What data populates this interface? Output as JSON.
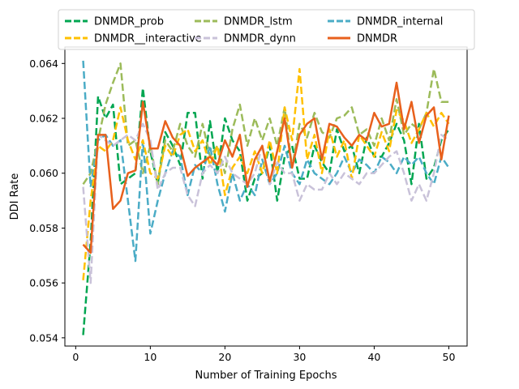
{
  "chart_data": {
    "type": "line",
    "title": "",
    "xlabel": "Number of Training Epochs",
    "ylabel": "DDI Rate",
    "xlim": [
      -1.45,
      52.45
    ],
    "ylim": [
      0.0537,
      0.0646
    ],
    "xticks": [
      0,
      10,
      20,
      30,
      40,
      50
    ],
    "yticks": [
      0.054,
      0.056,
      0.058,
      0.06,
      0.062,
      0.064
    ],
    "ytick_labels": [
      "0.054",
      "0.056",
      "0.058",
      "0.060",
      "0.062",
      "0.064"
    ],
    "grid": false,
    "legend_position": "top",
    "x": [
      1,
      2,
      3,
      4,
      5,
      6,
      7,
      8,
      9,
      10,
      11,
      12,
      13,
      14,
      15,
      16,
      17,
      18,
      19,
      20,
      21,
      22,
      23,
      24,
      25,
      26,
      27,
      28,
      29,
      30,
      31,
      32,
      33,
      34,
      35,
      36,
      37,
      38,
      39,
      40,
      41,
      42,
      43,
      44,
      45,
      46,
      47,
      48,
      49,
      50
    ],
    "series": [
      {
        "name": "DNMDR_prob",
        "color": "#00a651",
        "dash": "dashed",
        "width": 2.5,
        "values": [
          0.0541,
          0.0575,
          0.0628,
          0.062,
          0.0625,
          0.0596,
          0.0598,
          0.06,
          0.0631,
          0.0608,
          0.0596,
          0.0615,
          0.061,
          0.0603,
          0.0622,
          0.0622,
          0.0598,
          0.0619,
          0.06,
          0.062,
          0.0612,
          0.0608,
          0.059,
          0.0598,
          0.06,
          0.061,
          0.059,
          0.0606,
          0.061,
          0.0598,
          0.0598,
          0.061,
          0.0604,
          0.06,
          0.0616,
          0.0608,
          0.061,
          0.06,
          0.0613,
          0.0606,
          0.0606,
          0.0611,
          0.0618,
          0.0612,
          0.0596,
          0.0618,
          0.0598,
          0.0602,
          0.0612,
          0.0616
        ]
      },
      {
        "name": "DNMDR_lstm",
        "color": "#9cbb5a",
        "dash": "dashed",
        "width": 2.5,
        "values": [
          0.0596,
          0.06,
          0.0612,
          0.0625,
          0.0633,
          0.064,
          0.061,
          0.0612,
          0.06,
          0.061,
          0.0596,
          0.0612,
          0.0608,
          0.0618,
          0.061,
          0.0606,
          0.0618,
          0.0606,
          0.061,
          0.06,
          0.0616,
          0.0625,
          0.061,
          0.062,
          0.0612,
          0.062,
          0.061,
          0.0624,
          0.0602,
          0.0618,
          0.0613,
          0.0622,
          0.0615,
          0.0613,
          0.062,
          0.0621,
          0.0624,
          0.0614,
          0.0616,
          0.061,
          0.062,
          0.0612,
          0.0627,
          0.0614,
          0.0618,
          0.0616,
          0.0622,
          0.0638,
          0.0626,
          0.0626
        ]
      },
      {
        "name": "DNMDR_internal",
        "color": "#4bacc6",
        "dash": "dashed",
        "width": 2.5,
        "values": [
          0.0641,
          0.0595,
          0.0612,
          0.0614,
          0.061,
          0.0612,
          0.059,
          0.0568,
          0.0612,
          0.0578,
          0.059,
          0.06,
          0.0608,
          0.0606,
          0.0592,
          0.0603,
          0.06,
          0.061,
          0.0596,
          0.0586,
          0.06,
          0.059,
          0.0596,
          0.0592,
          0.0605,
          0.0596,
          0.06,
          0.061,
          0.06,
          0.0596,
          0.0605,
          0.06,
          0.0598,
          0.0596,
          0.06,
          0.0606,
          0.06,
          0.0605,
          0.0603,
          0.06,
          0.0606,
          0.0604,
          0.06,
          0.0606,
          0.0603,
          0.0606,
          0.06,
          0.0596,
          0.0606,
          0.0602
        ]
      },
      {
        "name": "DNMDR__interactive",
        "color": "#ffc000",
        "dash": "dashed",
        "width": 2.5,
        "values": [
          0.0561,
          0.059,
          0.061,
          0.0608,
          0.0612,
          0.0624,
          0.0612,
          0.0605,
          0.0612,
          0.06,
          0.0598,
          0.061,
          0.0606,
          0.0614,
          0.0616,
          0.0608,
          0.0612,
          0.0603,
          0.061,
          0.0592,
          0.0602,
          0.0606,
          0.06,
          0.0608,
          0.06,
          0.0612,
          0.06,
          0.0624,
          0.0612,
          0.0638,
          0.0605,
          0.0614,
          0.06,
          0.0616,
          0.0606,
          0.0612,
          0.0598,
          0.0614,
          0.061,
          0.0606,
          0.0615,
          0.0608,
          0.0623,
          0.0619,
          0.0611,
          0.0616,
          0.0622,
          0.0617,
          0.0622,
          0.0618
        ]
      },
      {
        "name": "DNMDR_dynn",
        "color": "#c9c2d9",
        "dash": "dashed",
        "width": 2.5,
        "values": [
          0.0595,
          0.056,
          0.0614,
          0.0612,
          0.061,
          0.0612,
          0.0614,
          0.0612,
          0.0618,
          0.0612,
          0.0594,
          0.06,
          0.0602,
          0.0602,
          0.0592,
          0.0588,
          0.06,
          0.0603,
          0.06,
          0.0606,
          0.06,
          0.0598,
          0.0596,
          0.06,
          0.061,
          0.0596,
          0.0604,
          0.06,
          0.06,
          0.059,
          0.0596,
          0.0594,
          0.0594,
          0.06,
          0.0596,
          0.06,
          0.0598,
          0.0596,
          0.06,
          0.06,
          0.0603,
          0.0606,
          0.0608,
          0.06,
          0.059,
          0.0596,
          0.059,
          0.06,
          0.0614,
          0.0612
        ]
      },
      {
        "name": "DNMDR",
        "color": "#e8601c",
        "dash": "solid",
        "width": 2.5,
        "values": [
          0.0574,
          0.0571,
          0.0614,
          0.0614,
          0.0587,
          0.059,
          0.06,
          0.0601,
          0.0626,
          0.0609,
          0.0609,
          0.0619,
          0.0613,
          0.061,
          0.0599,
          0.0602,
          0.0604,
          0.0606,
          0.0603,
          0.0612,
          0.0606,
          0.0614,
          0.0595,
          0.0605,
          0.061,
          0.0597,
          0.0608,
          0.062,
          0.0602,
          0.0614,
          0.0618,
          0.062,
          0.0605,
          0.0618,
          0.0617,
          0.0613,
          0.061,
          0.0614,
          0.0612,
          0.0622,
          0.0617,
          0.0618,
          0.0633,
          0.0616,
          0.0626,
          0.0611,
          0.0621,
          0.0624,
          0.0605,
          0.0621
        ]
      }
    ]
  }
}
